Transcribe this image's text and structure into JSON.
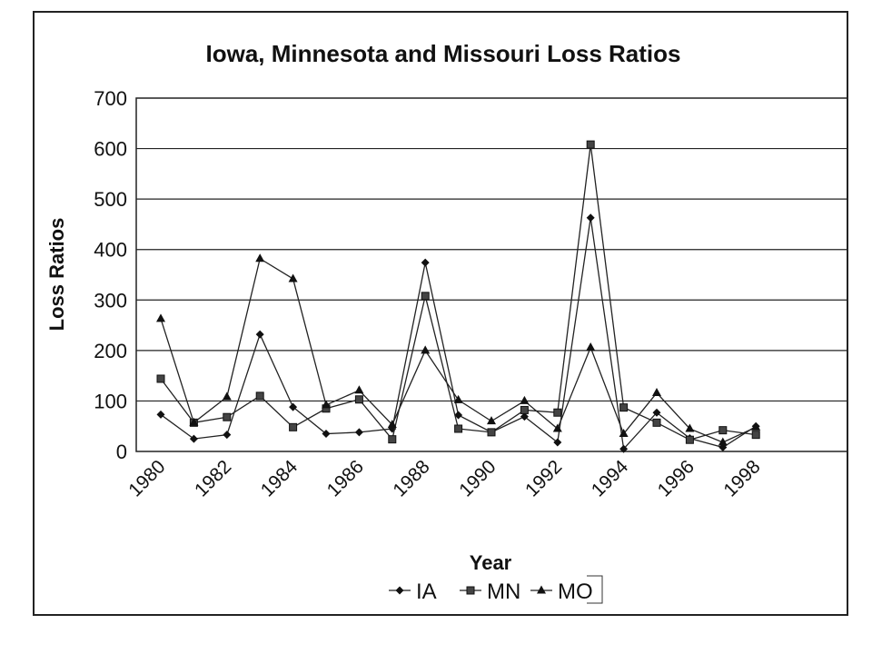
{
  "chart_data": {
    "type": "line",
    "title": "Iowa, Minnesota and Missouri Loss Ratios",
    "xlabel": "Year",
    "ylabel": "Loss Ratios",
    "ylim": [
      0,
      700
    ],
    "y_ticks": [
      0,
      100,
      200,
      300,
      400,
      500,
      600,
      700
    ],
    "x_tick_labels": [
      "1980",
      "1982",
      "1984",
      "1986",
      "1988",
      "1990",
      "1992",
      "1994",
      "1996",
      "1998"
    ],
    "x": [
      1980,
      1981,
      1982,
      1983,
      1984,
      1985,
      1986,
      1987,
      1988,
      1989,
      1990,
      1991,
      1992,
      1993,
      1994,
      1995,
      1996,
      1997,
      1998
    ],
    "grid": "horizontal",
    "legend_position": "bottom",
    "series": [
      {
        "name": "IA",
        "marker": "diamond",
        "values": [
          73,
          25,
          33,
          232,
          88,
          35,
          38,
          45,
          374,
          72,
          38,
          69,
          18,
          463,
          5,
          77,
          26,
          8,
          50
        ]
      },
      {
        "name": "MN",
        "marker": "square",
        "values": [
          144,
          57,
          68,
          110,
          48,
          85,
          103,
          24,
          308,
          45,
          38,
          82,
          77,
          608,
          87,
          57,
          23,
          42,
          33
        ]
      },
      {
        "name": "MO",
        "marker": "triangle",
        "values": [
          263,
          57,
          108,
          382,
          342,
          92,
          121,
          53,
          200,
          102,
          60,
          100,
          45,
          206,
          35,
          116,
          45,
          18,
          48
        ]
      }
    ]
  }
}
